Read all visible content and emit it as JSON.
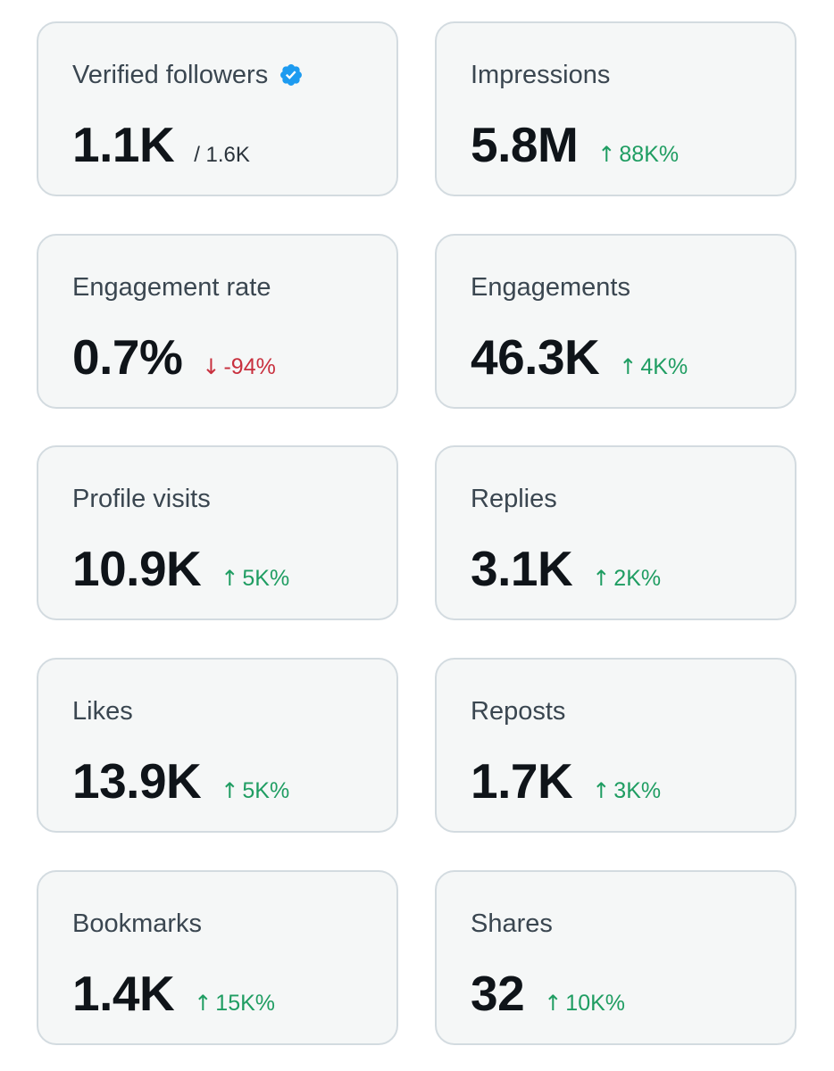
{
  "colors": {
    "card_bg": "#f5f7f7",
    "card_border": "#d3dbe0",
    "label": "#3a4650",
    "value": "#0f1419",
    "up": "#1f9d62",
    "down": "#c8303e",
    "verified": "#1d9bf0"
  },
  "cards": [
    {
      "label": "Verified followers",
      "value": "1.1K",
      "total": "/ 1.6K",
      "verified_icon": "verified-badge-icon"
    },
    {
      "label": "Impressions",
      "value": "5.8M",
      "arrow": "↑",
      "delta": "88K%",
      "direction": "up"
    },
    {
      "label": "Engagement rate",
      "value": "0.7%",
      "arrow": "↓",
      "delta": "-94%",
      "direction": "down"
    },
    {
      "label": "Engagements",
      "value": "46.3K",
      "arrow": "↑",
      "delta": "4K%",
      "direction": "up"
    },
    {
      "label": "Profile visits",
      "value": "10.9K",
      "arrow": "↑",
      "delta": "5K%",
      "direction": "up"
    },
    {
      "label": "Replies",
      "value": "3.1K",
      "arrow": "↑",
      "delta": "2K%",
      "direction": "up"
    },
    {
      "label": "Likes",
      "value": "13.9K",
      "arrow": "↑",
      "delta": "5K%",
      "direction": "up"
    },
    {
      "label": "Reposts",
      "value": "1.7K",
      "arrow": "↑",
      "delta": "3K%",
      "direction": "up"
    },
    {
      "label": "Bookmarks",
      "value": "1.4K",
      "arrow": "↑",
      "delta": "15K%",
      "direction": "up"
    },
    {
      "label": "Shares",
      "value": "32",
      "arrow": "↑",
      "delta": "10K%",
      "direction": "up"
    }
  ]
}
